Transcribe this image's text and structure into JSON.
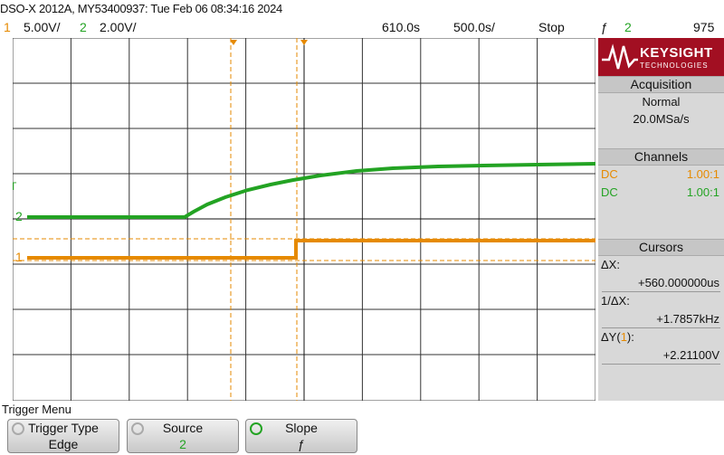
{
  "header": {
    "title": "DSO-X 2012A, MY53400937: Tue Feb 06 08:34:16 2024",
    "ch1_num": "1",
    "ch1_scale": "5.00V/",
    "ch2_num": "2",
    "ch2_scale": "2.00V/",
    "time_offset": "610.0&#x73;",
    "time_scale": "500.0&#x73;/",
    "run_state": "Stop",
    "trigger_symbol": "ƒ",
    "trigger_source": "2",
    "trigger_level": "975"
  },
  "colors": {
    "ch1": "#e68a00",
    "ch2": "#23a323"
  },
  "grid_markers": {
    "t": "T",
    "ch2": "2",
    "ch1": "1"
  },
  "sidebar": {
    "logo_main": "KEYSIGHT",
    "logo_sub": "TECHNOLOGIES",
    "acquisition": {
      "header": "Acquisition",
      "mode": "Normal",
      "rate": "20.0MSa/s"
    },
    "channels": {
      "header": "Channels",
      "rows": [
        {
          "coupling": "DC",
          "probe": "1.00:1"
        },
        {
          "coupling": "DC",
          "probe": "1.00:1"
        }
      ]
    },
    "cursors": {
      "header": "Cursors",
      "dx_label": "ΔX:",
      "dx_value": "+560.000000us",
      "inv_dx_label": "1/ΔX:",
      "inv_dx_value": "+1.7857kHz",
      "dy_label_prefix": "ΔY(",
      "dy_label_ch": "1",
      "dy_label_suffix": "):",
      "dy_value": "+2.21100V"
    }
  },
  "menu": {
    "title": "Trigger Menu",
    "softkeys": [
      {
        "label": "Trigger Type",
        "value": "Edge"
      },
      {
        "label": "Source",
        "value": "2"
      },
      {
        "label": "Slope",
        "value": "ƒ"
      }
    ]
  }
}
